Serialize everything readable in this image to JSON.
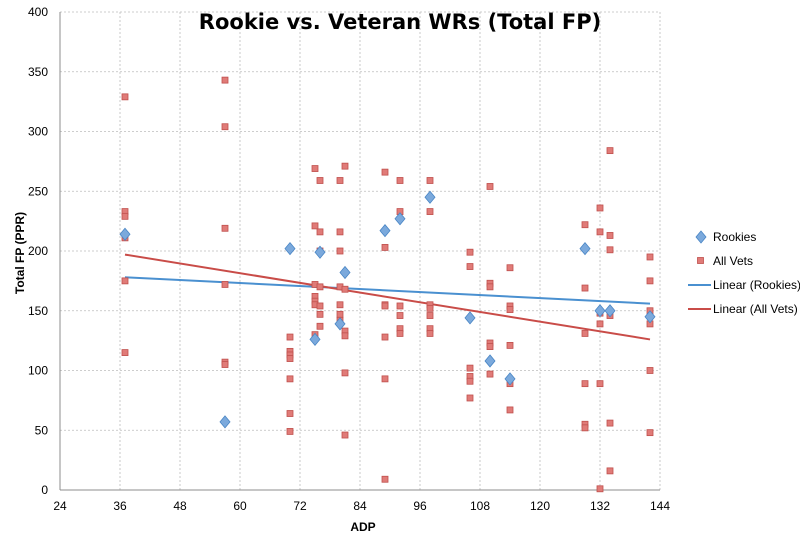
{
  "chart_data": {
    "type": "scatter",
    "title": "Rookie vs. Veteran WRs (Total FP)",
    "xlabel": "ADP",
    "ylabel": "Total FP (PPR)",
    "xlim": [
      24,
      144
    ],
    "ylim": [
      0,
      400
    ],
    "xticks": [
      "24",
      "36",
      "48",
      "60",
      "72",
      "84",
      "96",
      "108",
      "120",
      "132",
      "144"
    ],
    "yticks": [
      "0",
      "50",
      "100",
      "150",
      "200",
      "250",
      "300",
      "350",
      "400"
    ],
    "legend_position": "right",
    "colors": {
      "rookies": "#7ba9dc",
      "rookies_edge": "#4a86c5",
      "vets": "#e07b78",
      "vets_edge": "#c0504d",
      "grid": "#bdbdbd"
    },
    "series": [
      {
        "name": "Rookies",
        "marker": "diamond",
        "points": [
          [
            37,
            214
          ],
          [
            57,
            57
          ],
          [
            70,
            202
          ],
          [
            75,
            126
          ],
          [
            76,
            199
          ],
          [
            80,
            139
          ],
          [
            81,
            182
          ],
          [
            89,
            217
          ],
          [
            92,
            227
          ],
          [
            98,
            245
          ],
          [
            106,
            144
          ],
          [
            110,
            108
          ],
          [
            114,
            93
          ],
          [
            129,
            202
          ],
          [
            132,
            150
          ],
          [
            134,
            150
          ],
          [
            142,
            145
          ]
        ]
      },
      {
        "name": "All Vets",
        "marker": "square",
        "points": [
          [
            37,
            329
          ],
          [
            37,
            233
          ],
          [
            37,
            229
          ],
          [
            37,
            211
          ],
          [
            37,
            175
          ],
          [
            37,
            115
          ],
          [
            57,
            343
          ],
          [
            57,
            304
          ],
          [
            57,
            219
          ],
          [
            57,
            172
          ],
          [
            57,
            107
          ],
          [
            57,
            105
          ],
          [
            70,
            128
          ],
          [
            70,
            116
          ],
          [
            70,
            113
          ],
          [
            70,
            110
          ],
          [
            70,
            93
          ],
          [
            70,
            64
          ],
          [
            70,
            49
          ],
          [
            75,
            269
          ],
          [
            75,
            221
          ],
          [
            75,
            172
          ],
          [
            75,
            162
          ],
          [
            75,
            158
          ],
          [
            75,
            155
          ],
          [
            75,
            130
          ],
          [
            76,
            259
          ],
          [
            76,
            216
          ],
          [
            76,
            200
          ],
          [
            76,
            170
          ],
          [
            76,
            154
          ],
          [
            76,
            147
          ],
          [
            76,
            137
          ],
          [
            80,
            259
          ],
          [
            80,
            216
          ],
          [
            80,
            200
          ],
          [
            80,
            170
          ],
          [
            80,
            155
          ],
          [
            80,
            147
          ],
          [
            80,
            142
          ],
          [
            81,
            271
          ],
          [
            81,
            168
          ],
          [
            81,
            133
          ],
          [
            81,
            129
          ],
          [
            81,
            98
          ],
          [
            81,
            46
          ],
          [
            89,
            266
          ],
          [
            89,
            203
          ],
          [
            89,
            155
          ],
          [
            89,
            154
          ],
          [
            89,
            128
          ],
          [
            89,
            93
          ],
          [
            89,
            9
          ],
          [
            92,
            259
          ],
          [
            92,
            233
          ],
          [
            92,
            154
          ],
          [
            92,
            146
          ],
          [
            92,
            135
          ],
          [
            92,
            131
          ],
          [
            98,
            259
          ],
          [
            98,
            233
          ],
          [
            98,
            155
          ],
          [
            98,
            152
          ],
          [
            98,
            146
          ],
          [
            98,
            135
          ],
          [
            98,
            131
          ],
          [
            106,
            199
          ],
          [
            106,
            187
          ],
          [
            106,
            102
          ],
          [
            106,
            95
          ],
          [
            106,
            91
          ],
          [
            106,
            77
          ],
          [
            110,
            254
          ],
          [
            110,
            173
          ],
          [
            110,
            170
          ],
          [
            110,
            123
          ],
          [
            110,
            120
          ],
          [
            110,
            97
          ],
          [
            114,
            186
          ],
          [
            114,
            154
          ],
          [
            114,
            151
          ],
          [
            114,
            121
          ],
          [
            114,
            89
          ],
          [
            114,
            67
          ],
          [
            129,
            222
          ],
          [
            129,
            169
          ],
          [
            129,
            131
          ],
          [
            129,
            89
          ],
          [
            129,
            55
          ],
          [
            129,
            52
          ],
          [
            132,
            236
          ],
          [
            132,
            216
          ],
          [
            132,
            148
          ],
          [
            132,
            139
          ],
          [
            132,
            89
          ],
          [
            132,
            1
          ],
          [
            134,
            284
          ],
          [
            134,
            213
          ],
          [
            134,
            201
          ],
          [
            134,
            146
          ],
          [
            134,
            56
          ],
          [
            134,
            16
          ],
          [
            142,
            195
          ],
          [
            142,
            175
          ],
          [
            142,
            150
          ],
          [
            142,
            139
          ],
          [
            142,
            100
          ],
          [
            142,
            48
          ]
        ]
      }
    ],
    "trendlines": [
      {
        "name": "Linear (Rookies)",
        "x": [
          37,
          142
        ],
        "y": [
          178,
          156
        ]
      },
      {
        "name": "Linear (All Vets)",
        "x": [
          37,
          142
        ],
        "y": [
          197,
          126
        ]
      }
    ]
  }
}
